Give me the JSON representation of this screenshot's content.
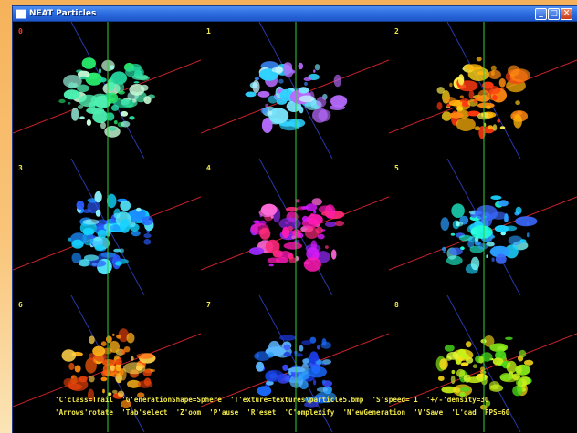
{
  "window": {
    "title": "NEAT Particles"
  },
  "title_buttons": {
    "minimize": "_",
    "maximize": "□",
    "close": "✕"
  },
  "colors": {
    "index_0": "#ff3a2a",
    "index_other": "#f2e94a",
    "axis_green": "#2fd13a",
    "axis_red": "#c8232a",
    "axis_blue": "#2a36a8",
    "status_text": "#f2e94a"
  },
  "cells": [
    {
      "index": "0",
      "palette": [
        "#26e86a",
        "#4df0b0",
        "#c8ffd9",
        "#9cf7e2",
        "#24d7a0"
      ]
    },
    {
      "index": "1",
      "palette": [
        "#2fd2ff",
        "#3a8cff",
        "#7be6ff",
        "#b86bff",
        "#c2f4ff"
      ]
    },
    {
      "index": "2",
      "palette": [
        "#ffd31a",
        "#ff8a12",
        "#ff3a12",
        "#fff14d",
        "#ffb40a"
      ]
    },
    {
      "index": "3",
      "palette": [
        "#13d3ff",
        "#1a8cff",
        "#53e8ff",
        "#2a5cff",
        "#8cf2ff"
      ]
    },
    {
      "index": "4",
      "palette": [
        "#ff1ab4",
        "#d61aff",
        "#ff2a7a",
        "#ff6ad8",
        "#9a2aff"
      ]
    },
    {
      "index": "5",
      "palette": [
        "#1ad1ff",
        "#2a9cff",
        "#7affff",
        "#3a6aff",
        "#20ffd8"
      ]
    },
    {
      "index": "6",
      "palette": [
        "#ff8a0a",
        "#ffb21a",
        "#ff5a0a",
        "#ffd24a",
        "#e0400a"
      ]
    },
    {
      "index": "7",
      "palette": [
        "#1a6aff",
        "#2a9cff",
        "#3a4aff",
        "#5ab6ff",
        "#1a3ae0"
      ]
    },
    {
      "index": "8",
      "palette": [
        "#c8f01a",
        "#86e81a",
        "#e0ff3a",
        "#ffe01a",
        "#4ad81a"
      ]
    }
  ],
  "status": {
    "line1": "'C'class=Trail  'G'enerationShape=Sphere  'T'exture=textures\\particle5.bmp  'S'speed= 1  '+/-'density=30",
    "line2": "'Arrows'rotate  'Tab'select  'Z'oom  'P'ause  'R'eset  'C'omplexify  'N'ewGeneration  'V'Save  'L'oad  FPS=60"
  }
}
